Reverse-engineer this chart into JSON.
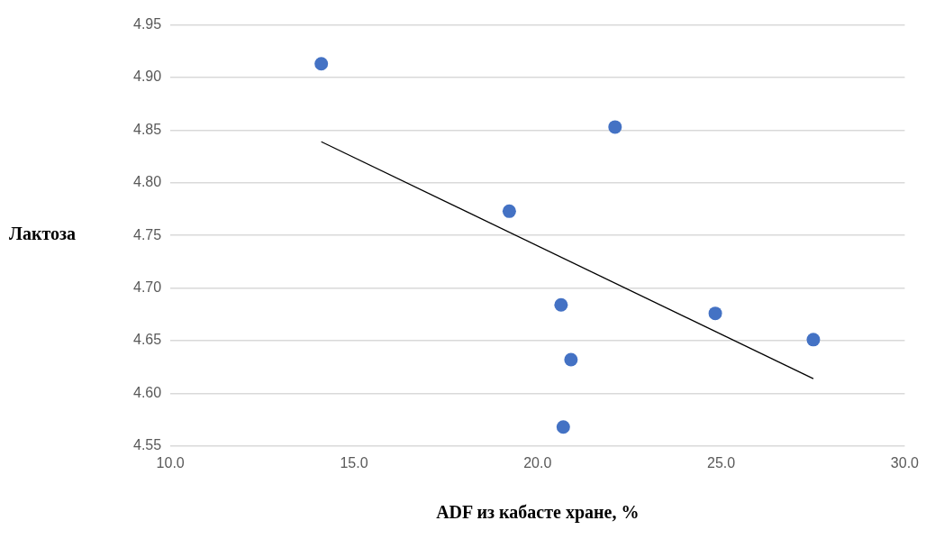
{
  "chart_data": {
    "type": "scatter",
    "xlabel": "ADF из кабасте хране, %",
    "ylabel": "Лактоза",
    "xlim": [
      10,
      30
    ],
    "xticks": [
      {
        "value": 10,
        "label": "10.0"
      },
      {
        "value": 15,
        "label": "15.0"
      },
      {
        "value": 20,
        "label": "20.0"
      },
      {
        "value": 25,
        "label": "25.0"
      },
      {
        "value": 30,
        "label": "30.0"
      }
    ],
    "ylim": [
      4.55,
      4.95
    ],
    "yticks": [
      4.55,
      {
        "value": 4.6,
        "label": "4.60"
      },
      4.65,
      {
        "value": 4.7,
        "label": "4.70"
      },
      4.75,
      {
        "value": 4.8,
        "label": "4.80"
      },
      4.85,
      {
        "value": 4.9,
        "label": "4.90"
      },
      4.95
    ],
    "grid": "y",
    "legend": false,
    "marker": "circle",
    "series": [
      {
        "color": "#4472c4",
        "x": [
          14.11,
          22.11,
          19.23,
          20.64,
          24.84,
          27.51,
          20.91,
          20.7
        ],
        "values": [
          4.913,
          4.853,
          4.773,
          4.684,
          4.676,
          4.651,
          4.632,
          4.568
        ]
      },
      {
        "type": "line",
        "color": "#000000",
        "marker": "none",
        "x": [
          14.11,
          27.51
        ],
        "values": [
          4.839,
          4.614
        ]
      }
    ]
  }
}
